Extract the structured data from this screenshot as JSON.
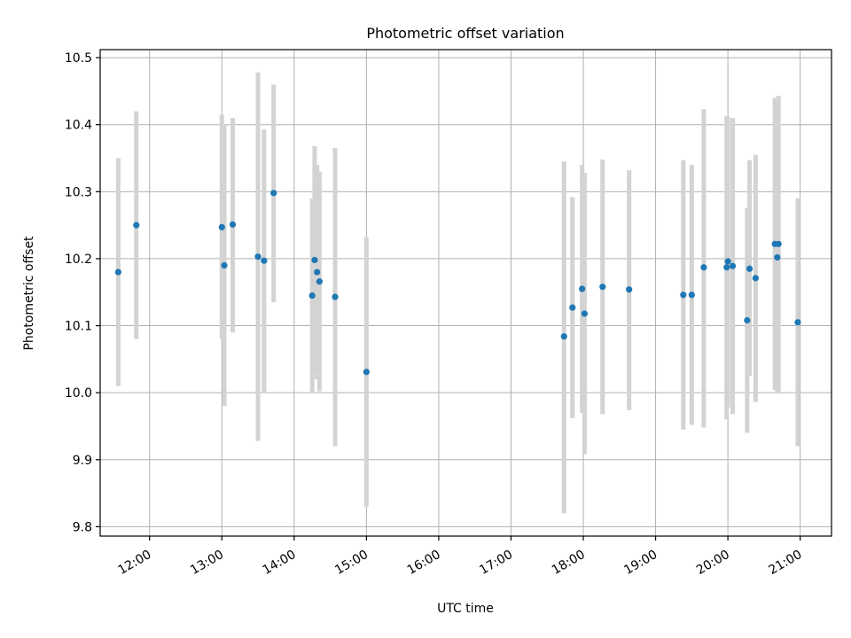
{
  "chart_data": {
    "type": "scatter",
    "title": "Photometric offset variation",
    "xlabel": "UTC time",
    "ylabel": "Photometric offset",
    "xlim": [
      "11:19",
      "21:26"
    ],
    "ylim": [
      9.786,
      10.512
    ],
    "grid": true,
    "x_ticks": [
      "12:00",
      "13:00",
      "14:00",
      "15:00",
      "16:00",
      "17:00",
      "18:00",
      "19:00",
      "20:00",
      "21:00"
    ],
    "y_ticks": [
      "9.8",
      "9.9",
      "10.0",
      "10.1",
      "10.2",
      "10.3",
      "10.4",
      "10.5"
    ],
    "colors": {
      "points": "#1f77b4",
      "errorbars": "#d3d3d3",
      "grid": "#b0b0b0"
    },
    "series": [
      {
        "points": [
          {
            "x": "11:34",
            "y": 10.18,
            "lo": 10.01,
            "hi": 10.35
          },
          {
            "x": "11:49",
            "y": 10.25,
            "lo": 10.08,
            "hi": 10.42
          },
          {
            "x": "13:00",
            "y": 10.247,
            "lo": 10.08,
            "hi": 10.415
          },
          {
            "x": "13:02",
            "y": 10.19,
            "lo": 9.98,
            "hi": 10.4
          },
          {
            "x": "13:09",
            "y": 10.251,
            "lo": 10.09,
            "hi": 10.41
          },
          {
            "x": "13:30",
            "y": 10.203,
            "lo": 9.928,
            "hi": 10.478
          },
          {
            "x": "13:35",
            "y": 10.197,
            "lo": 10.0,
            "hi": 10.393
          },
          {
            "x": "13:43",
            "y": 10.298,
            "lo": 10.135,
            "hi": 10.46
          },
          {
            "x": "14:15",
            "y": 10.145,
            "lo": 10.0,
            "hi": 10.29
          },
          {
            "x": "14:17",
            "y": 10.198,
            "lo": 10.028,
            "hi": 10.368
          },
          {
            "x": "14:19",
            "y": 10.18,
            "lo": 10.02,
            "hi": 10.34
          },
          {
            "x": "14:21",
            "y": 10.166,
            "lo": 10.002,
            "hi": 10.33
          },
          {
            "x": "14:34",
            "y": 10.143,
            "lo": 9.92,
            "hi": 10.365
          },
          {
            "x": "15:00",
            "y": 10.031,
            "lo": 9.83,
            "hi": 10.232
          },
          {
            "x": "17:44",
            "y": 10.084,
            "lo": 9.82,
            "hi": 10.345
          },
          {
            "x": "17:51",
            "y": 10.127,
            "lo": 9.962,
            "hi": 10.292
          },
          {
            "x": "17:59",
            "y": 10.155,
            "lo": 9.97,
            "hi": 10.34
          },
          {
            "x": "18:01",
            "y": 10.118,
            "lo": 9.908,
            "hi": 10.328
          },
          {
            "x": "18:16",
            "y": 10.158,
            "lo": 9.968,
            "hi": 10.348
          },
          {
            "x": "18:38",
            "y": 10.154,
            "lo": 9.974,
            "hi": 10.332
          },
          {
            "x": "19:23",
            "y": 10.146,
            "lo": 9.945,
            "hi": 10.347
          },
          {
            "x": "19:30",
            "y": 10.146,
            "lo": 9.952,
            "hi": 10.34
          },
          {
            "x": "19:40",
            "y": 10.187,
            "lo": 9.948,
            "hi": 10.423
          },
          {
            "x": "19:59",
            "y": 10.187,
            "lo": 9.96,
            "hi": 10.413
          },
          {
            "x": "20:00",
            "y": 10.196,
            "lo": 9.978,
            "hi": 10.412
          },
          {
            "x": "20:04",
            "y": 10.189,
            "lo": 9.968,
            "hi": 10.41
          },
          {
            "x": "20:16",
            "y": 10.108,
            "lo": 9.94,
            "hi": 10.276
          },
          {
            "x": "20:18",
            "y": 10.185,
            "lo": 10.025,
            "hi": 10.347
          },
          {
            "x": "20:23",
            "y": 10.171,
            "lo": 9.986,
            "hi": 10.355
          },
          {
            "x": "20:39",
            "y": 10.222,
            "lo": 10.004,
            "hi": 10.44
          },
          {
            "x": "20:41",
            "y": 10.202,
            "lo": 10.0,
            "hi": 10.405
          },
          {
            "x": "20:42",
            "y": 10.222,
            "lo": 10.001,
            "hi": 10.443
          },
          {
            "x": "20:58",
            "y": 10.105,
            "lo": 9.92,
            "hi": 10.29
          }
        ]
      }
    ]
  }
}
